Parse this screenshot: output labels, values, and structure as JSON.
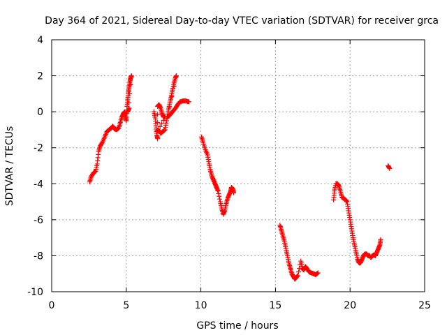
{
  "chart_data": {
    "type": "scatter",
    "title": "Day 364 of 2021, Sidereal Day-to-day VTEC variation (SDTVAR) for receiver grca",
    "xlabel": "GPS time / hours",
    "ylabel": "SDTVAR / TECUs",
    "xlim": [
      0,
      25
    ],
    "ylim": [
      -10,
      4
    ],
    "xticks": [
      0,
      5,
      10,
      15,
      20,
      25
    ],
    "yticks": [
      -10,
      -8,
      -6,
      -4,
      -2,
      0,
      2,
      4
    ],
    "grid": true,
    "marker": "+",
    "color": "#ff0000",
    "series": [
      {
        "points": [
          [
            2.55,
            -3.9
          ],
          [
            2.65,
            -3.6
          ],
          [
            2.8,
            -3.4
          ],
          [
            2.95,
            -3.3
          ],
          [
            3.05,
            -2.9
          ],
          [
            3.15,
            -2.2
          ],
          [
            3.25,
            -1.9
          ],
          [
            3.4,
            -1.7
          ],
          [
            3.55,
            -1.4
          ],
          [
            3.7,
            -1.1
          ],
          [
            3.85,
            -1.0
          ],
          [
            4.0,
            -0.9
          ],
          [
            4.1,
            -0.8
          ],
          [
            4.2,
            -0.95
          ],
          [
            4.35,
            -1.0
          ],
          [
            4.5,
            -0.9
          ],
          [
            4.6,
            -0.6
          ],
          [
            4.7,
            -0.3
          ],
          [
            4.8,
            -0.1
          ],
          [
            4.9,
            0.0
          ],
          [
            4.95,
            -0.3
          ],
          [
            5.0,
            -0.5
          ],
          [
            5.05,
            0.3
          ],
          [
            5.1,
            0.7
          ],
          [
            5.15,
            1.1
          ],
          [
            5.2,
            1.4
          ],
          [
            5.25,
            1.7
          ],
          [
            5.3,
            1.9
          ],
          [
            5.35,
            2.0
          ],
          [
            5.1,
            0.0
          ],
          [
            5.2,
            0.2
          ]
        ]
      },
      {
        "points": [
          [
            6.85,
            0.0
          ],
          [
            6.95,
            -0.4
          ],
          [
            7.0,
            -0.9
          ],
          [
            7.05,
            -1.3
          ],
          [
            7.1,
            -1.5
          ],
          [
            7.1,
            0.3
          ],
          [
            7.2,
            0.4
          ],
          [
            7.3,
            0.2
          ],
          [
            7.4,
            -0.1
          ],
          [
            7.5,
            -0.3
          ],
          [
            7.6,
            -0.3
          ],
          [
            7.15,
            -1.0
          ],
          [
            7.3,
            -1.2
          ],
          [
            7.45,
            -1.1
          ],
          [
            7.6,
            -1.0
          ],
          [
            7.7,
            -0.5
          ],
          [
            7.8,
            0.0
          ],
          [
            7.9,
            0.4
          ],
          [
            8.0,
            0.8
          ],
          [
            8.1,
            1.2
          ],
          [
            8.2,
            1.6
          ],
          [
            8.3,
            1.9
          ],
          [
            8.35,
            2.0
          ],
          [
            7.75,
            -0.3
          ],
          [
            7.9,
            -0.2
          ],
          [
            8.0,
            -0.1
          ],
          [
            8.15,
            0.05
          ],
          [
            8.3,
            0.2
          ],
          [
            8.45,
            0.4
          ],
          [
            8.6,
            0.55
          ],
          [
            8.8,
            0.6
          ],
          [
            9.0,
            0.6
          ],
          [
            9.2,
            0.55
          ]
        ]
      },
      {
        "points": [
          [
            10.05,
            -1.4
          ],
          [
            10.15,
            -1.7
          ],
          [
            10.3,
            -2.1
          ],
          [
            10.45,
            -2.4
          ],
          [
            10.55,
            -2.9
          ],
          [
            10.65,
            -3.3
          ],
          [
            10.75,
            -3.6
          ],
          [
            10.85,
            -3.8
          ],
          [
            10.95,
            -4.0
          ],
          [
            11.05,
            -4.2
          ],
          [
            11.15,
            -4.4
          ],
          [
            11.3,
            -5.0
          ],
          [
            11.4,
            -5.4
          ],
          [
            11.5,
            -5.7
          ],
          [
            11.6,
            -5.5
          ],
          [
            11.7,
            -5.1
          ],
          [
            11.8,
            -4.8
          ],
          [
            11.9,
            -4.6
          ],
          [
            12.0,
            -4.4
          ],
          [
            12.05,
            -4.2
          ],
          [
            12.15,
            -4.3
          ],
          [
            12.2,
            -4.5
          ]
        ]
      },
      {
        "points": [
          [
            15.3,
            -6.3
          ],
          [
            15.4,
            -6.6
          ],
          [
            15.5,
            -6.9
          ],
          [
            15.6,
            -7.2
          ],
          [
            15.7,
            -7.6
          ],
          [
            15.8,
            -8.0
          ],
          [
            15.9,
            -8.4
          ],
          [
            16.0,
            -8.7
          ],
          [
            16.1,
            -9.0
          ],
          [
            16.2,
            -9.15
          ],
          [
            16.3,
            -9.3
          ],
          [
            16.4,
            -9.2
          ],
          [
            16.5,
            -9.1
          ],
          [
            16.7,
            -8.3
          ],
          [
            16.8,
            -8.7
          ],
          [
            16.9,
            -8.8
          ],
          [
            17.0,
            -8.6
          ],
          [
            17.1,
            -8.7
          ],
          [
            17.25,
            -8.9
          ],
          [
            17.4,
            -8.95
          ],
          [
            17.55,
            -9.0
          ],
          [
            17.7,
            -9.05
          ],
          [
            17.85,
            -8.95
          ]
        ]
      },
      {
        "points": [
          [
            18.9,
            -4.9
          ],
          [
            18.95,
            -4.4
          ],
          [
            19.05,
            -4.0
          ],
          [
            19.15,
            -4.0
          ],
          [
            19.25,
            -4.1
          ],
          [
            19.35,
            -4.4
          ],
          [
            19.45,
            -4.75
          ],
          [
            19.55,
            -4.8
          ],
          [
            19.7,
            -4.9
          ],
          [
            19.8,
            -5.0
          ],
          [
            19.9,
            -5.5
          ],
          [
            20.0,
            -6.0
          ],
          [
            20.1,
            -6.5
          ],
          [
            20.2,
            -7.0
          ],
          [
            20.3,
            -7.4
          ],
          [
            20.4,
            -7.8
          ],
          [
            20.5,
            -8.2
          ],
          [
            20.6,
            -8.4
          ],
          [
            20.7,
            -8.4
          ],
          [
            20.8,
            -8.2
          ],
          [
            20.9,
            -8.0
          ],
          [
            21.0,
            -7.9
          ],
          [
            21.1,
            -7.9
          ],
          [
            21.2,
            -8.0
          ],
          [
            21.3,
            -8.0
          ],
          [
            21.4,
            -8.1
          ],
          [
            21.5,
            -8.0
          ],
          [
            21.6,
            -7.95
          ],
          [
            21.7,
            -8.0
          ],
          [
            21.8,
            -7.8
          ],
          [
            21.9,
            -7.6
          ],
          [
            22.0,
            -7.4
          ],
          [
            22.05,
            -7.1
          ]
        ]
      },
      {
        "points": [
          [
            22.55,
            -3.0
          ],
          [
            22.65,
            -3.15
          ]
        ]
      }
    ]
  }
}
